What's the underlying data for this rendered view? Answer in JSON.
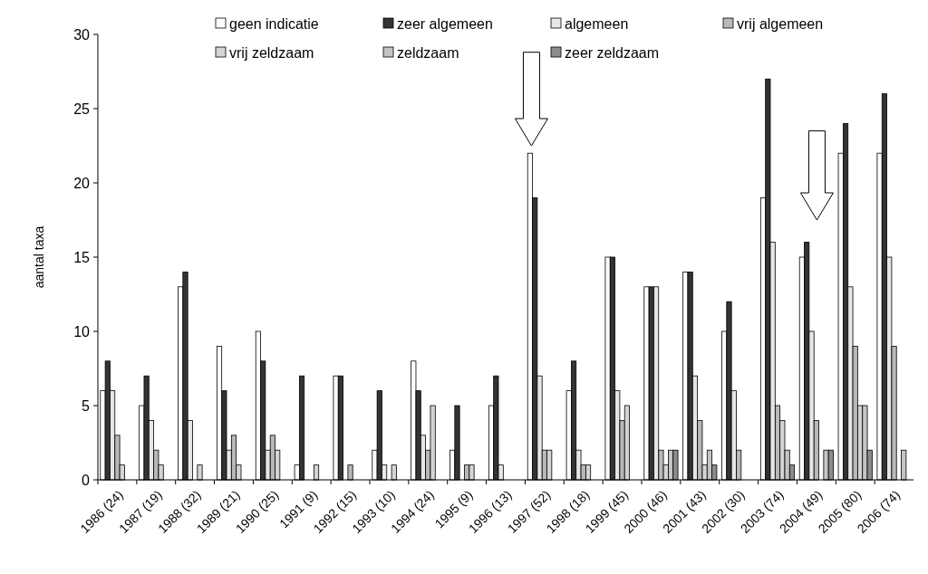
{
  "chart_data": {
    "type": "bar",
    "ylabel": "aantal taxa",
    "ylim": [
      0,
      30
    ],
    "yticks": [
      0,
      5,
      10,
      15,
      20,
      25,
      30
    ],
    "legend": "top",
    "grid": false,
    "categories": [
      "1986 (24)",
      "1987 (19)",
      "1988 (32)",
      "1989 (21)",
      "1990 (25)",
      "1991 (9)",
      "1992 (15)",
      "1993 (10)",
      "1994 (24)",
      "1995 (9)",
      "1996 (13)",
      "1997 (52)",
      "1998 (18)",
      "1999 (45)",
      "2000 (46)",
      "2001 (43)",
      "2002 (30)",
      "2003 (74)",
      "2004 (49)",
      "2005 (80)",
      "2006 (74)"
    ],
    "series": [
      {
        "name": "geen indicatie",
        "color": "#ffffff",
        "values": [
          6,
          5,
          13,
          9,
          10,
          1,
          7,
          2,
          8,
          2,
          5,
          22,
          6,
          15,
          13,
          14,
          10,
          19,
          15,
          22,
          22
        ]
      },
      {
        "name": "zeer algemeen",
        "color": "#333333",
        "values": [
          8,
          7,
          14,
          6,
          8,
          7,
          7,
          6,
          6,
          5,
          7,
          19,
          8,
          15,
          13,
          14,
          12,
          27,
          16,
          24,
          26
        ]
      },
      {
        "name": "algemeen",
        "color": "#e6e6e6",
        "values": [
          6,
          4,
          4,
          2,
          2,
          0,
          0,
          1,
          3,
          0,
          1,
          7,
          2,
          6,
          13,
          7,
          6,
          16,
          10,
          13,
          15
        ]
      },
      {
        "name": "vrij algemeen",
        "color": "#b8b8b8",
        "values": [
          3,
          2,
          0,
          3,
          3,
          0,
          1,
          0,
          2,
          1,
          0,
          2,
          1,
          4,
          2,
          4,
          2,
          5,
          4,
          9,
          9
        ]
      },
      {
        "name": "vrij zeldzaam",
        "color": "#d4d4d4",
        "values": [
          1,
          1,
          1,
          1,
          2,
          1,
          0,
          1,
          5,
          1,
          0,
          2,
          1,
          5,
          1,
          1,
          0,
          4,
          0,
          5,
          0
        ]
      },
      {
        "name": "zeldzaam",
        "color": "#c4c4c4",
        "values": [
          0,
          0,
          0,
          0,
          0,
          0,
          0,
          0,
          0,
          0,
          0,
          0,
          0,
          0,
          2,
          2,
          0,
          2,
          2,
          5,
          2
        ]
      },
      {
        "name": "zeer zeldzaam",
        "color": "#8c8c8c",
        "values": [
          0,
          0,
          0,
          0,
          0,
          0,
          0,
          0,
          0,
          0,
          0,
          0,
          0,
          0,
          2,
          1,
          0,
          1,
          2,
          2,
          null
        ]
      }
    ]
  }
}
